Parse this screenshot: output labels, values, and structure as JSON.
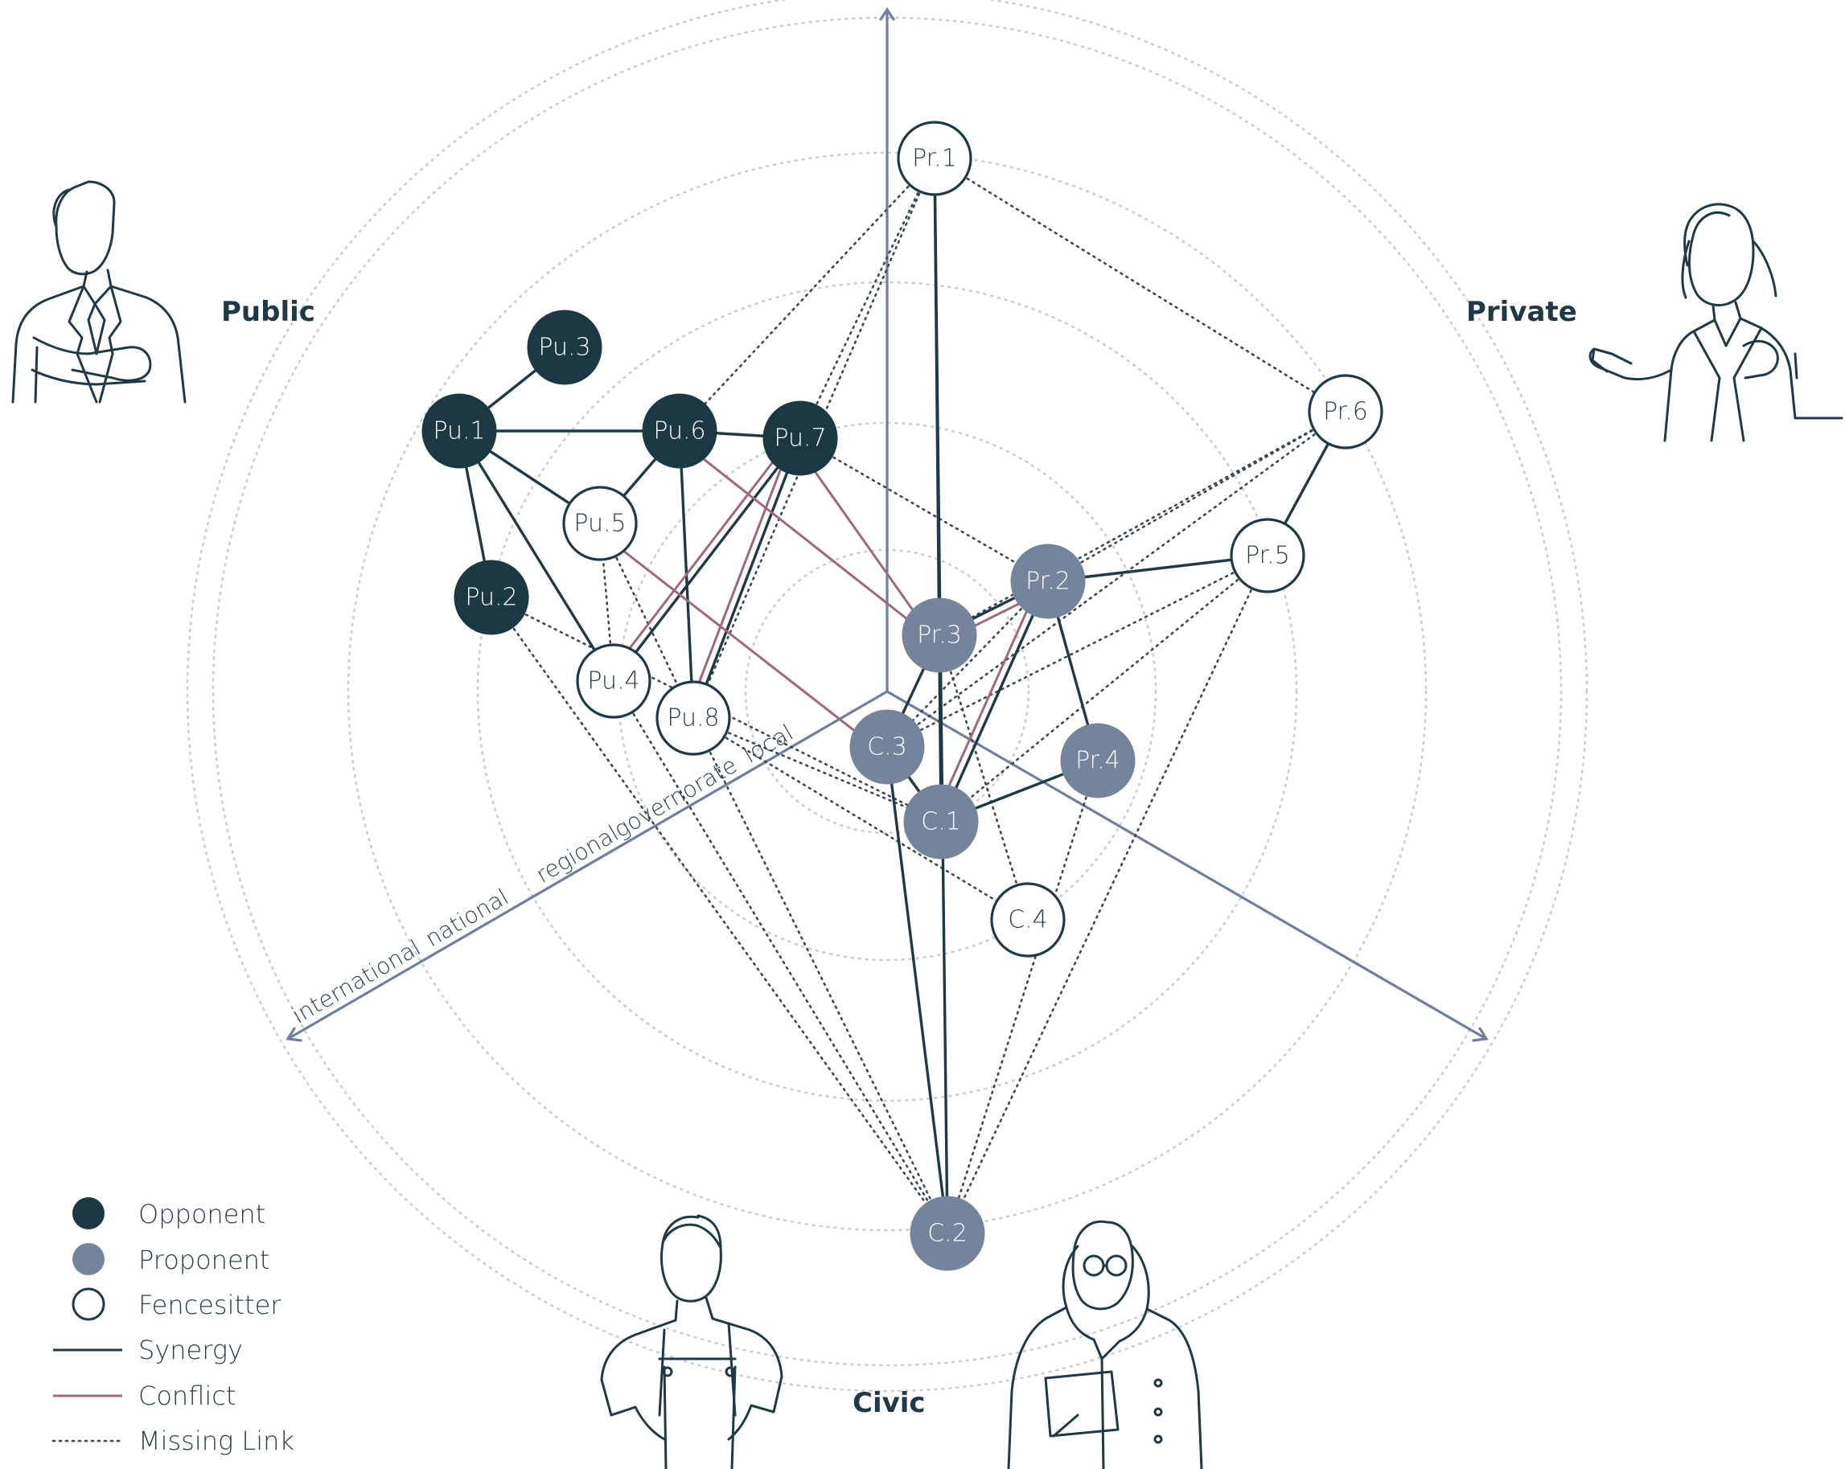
{
  "sectors": {
    "public": "Public",
    "private": "Private",
    "civic": "Civic"
  },
  "scale_labels": [
    "local",
    "governorate",
    "regional",
    "national",
    "international"
  ],
  "colors": {
    "opponent": "#1b3843",
    "proponent": "#74849c",
    "fencesitter": "#ffffff",
    "synergy": "#1f3a46",
    "conflict": "#9c6a78",
    "axis": "#6f7f9c",
    "ring": "#c9cdd6"
  },
  "nodes": [
    {
      "id": "Pr.1",
      "label": "Pr.1",
      "group": "private",
      "stance": "fencesitter"
    },
    {
      "id": "Pr.2",
      "label": "Pr.2",
      "group": "private",
      "stance": "proponent"
    },
    {
      "id": "Pr.3",
      "label": "Pr.3",
      "group": "private",
      "stance": "proponent"
    },
    {
      "id": "Pr.4",
      "label": "Pr.4",
      "group": "private",
      "stance": "proponent"
    },
    {
      "id": "Pr.5",
      "label": "Pr.5",
      "group": "private",
      "stance": "fencesitter"
    },
    {
      "id": "Pr.6",
      "label": "Pr.6",
      "group": "private",
      "stance": "fencesitter"
    },
    {
      "id": "Pu.1",
      "label": "Pu.1",
      "group": "public",
      "stance": "opponent"
    },
    {
      "id": "Pu.2",
      "label": "Pu.2",
      "group": "public",
      "stance": "opponent"
    },
    {
      "id": "Pu.3",
      "label": "Pu.3",
      "group": "public",
      "stance": "opponent"
    },
    {
      "id": "Pu.4",
      "label": "Pu.4",
      "group": "public",
      "stance": "fencesitter"
    },
    {
      "id": "Pu.5",
      "label": "Pu.5",
      "group": "public",
      "stance": "fencesitter"
    },
    {
      "id": "Pu.6",
      "label": "Pu.6",
      "group": "public",
      "stance": "opponent"
    },
    {
      "id": "Pu.7",
      "label": "Pu.7",
      "group": "public",
      "stance": "opponent"
    },
    {
      "id": "Pu.8",
      "label": "Pu.8",
      "group": "public",
      "stance": "fencesitter"
    },
    {
      "id": "C.1",
      "label": "C.1",
      "group": "civic",
      "stance": "proponent"
    },
    {
      "id": "C.2",
      "label": "C.2",
      "group": "civic",
      "stance": "proponent"
    },
    {
      "id": "C.3",
      "label": "C.3",
      "group": "civic",
      "stance": "proponent"
    },
    {
      "id": "C.4",
      "label": "C.4",
      "group": "civic",
      "stance": "fencesitter"
    }
  ],
  "edges": [
    {
      "from": "Pu.1",
      "to": "Pu.3",
      "type": "synergy"
    },
    {
      "from": "Pu.1",
      "to": "Pu.6",
      "type": "synergy"
    },
    {
      "from": "Pu.1",
      "to": "Pu.2",
      "type": "synergy"
    },
    {
      "from": "Pu.1",
      "to": "Pu.5",
      "type": "synergy"
    },
    {
      "from": "Pu.1",
      "to": "Pu.4",
      "type": "synergy"
    },
    {
      "from": "Pu.6",
      "to": "Pu.7",
      "type": "synergy"
    },
    {
      "from": "Pu.6",
      "to": "Pu.5",
      "type": "synergy"
    },
    {
      "from": "Pu.6",
      "to": "Pu.8",
      "type": "synergy"
    },
    {
      "from": "Pu.7",
      "to": "Pu.4",
      "type": "synergy"
    },
    {
      "from": "Pu.7",
      "to": "Pu.8",
      "type": "synergy"
    },
    {
      "from": "Pr.1",
      "to": "C.1",
      "type": "synergy"
    },
    {
      "from": "Pr.1",
      "to": "C.2",
      "type": "synergy"
    },
    {
      "from": "Pr.6",
      "to": "Pr.5",
      "type": "synergy"
    },
    {
      "from": "Pr.5",
      "to": "Pr.2",
      "type": "synergy"
    },
    {
      "from": "Pr.2",
      "to": "Pr.3",
      "type": "synergy"
    },
    {
      "from": "Pr.2",
      "to": "Pr.4",
      "type": "synergy"
    },
    {
      "from": "Pr.2",
      "to": "C.1",
      "type": "synergy"
    },
    {
      "from": "Pr.3",
      "to": "C.3",
      "type": "synergy"
    },
    {
      "from": "Pr.4",
      "to": "C.1",
      "type": "synergy"
    },
    {
      "from": "C.3",
      "to": "C.1",
      "type": "synergy"
    },
    {
      "from": "C.3",
      "to": "C.2",
      "type": "synergy"
    },
    {
      "from": "Pu.7",
      "to": "Pu.4",
      "type": "conflict"
    },
    {
      "from": "Pu.7",
      "to": "Pu.8",
      "type": "conflict"
    },
    {
      "from": "Pu.6",
      "to": "Pr.3",
      "type": "conflict"
    },
    {
      "from": "Pu.7",
      "to": "Pr.3",
      "type": "conflict"
    },
    {
      "from": "Pu.5",
      "to": "C.3",
      "type": "conflict"
    },
    {
      "from": "Pr.2",
      "to": "C.1",
      "type": "conflict"
    },
    {
      "from": "Pr.3",
      "to": "Pr.2",
      "type": "conflict"
    },
    {
      "from": "Pr.1",
      "to": "Pu.6",
      "type": "missing"
    },
    {
      "from": "Pr.1",
      "to": "Pu.7",
      "type": "missing"
    },
    {
      "from": "Pr.1",
      "to": "Pr.6",
      "type": "missing"
    },
    {
      "from": "Pr.1",
      "to": "Pu.8",
      "type": "missing"
    },
    {
      "from": "Pu.7",
      "to": "Pr.2",
      "type": "missing"
    },
    {
      "from": "Pr.6",
      "to": "Pr.3",
      "type": "missing"
    },
    {
      "from": "Pr.6",
      "to": "C.3",
      "type": "missing"
    },
    {
      "from": "Pr.6",
      "to": "Pr.2",
      "type": "missing"
    },
    {
      "from": "Pr.5",
      "to": "C.3",
      "type": "missing"
    },
    {
      "from": "Pr.5",
      "to": "C.1",
      "type": "missing"
    },
    {
      "from": "Pr.5",
      "to": "C.2",
      "type": "missing"
    },
    {
      "from": "Pu.2",
      "to": "C.2",
      "type": "missing"
    },
    {
      "from": "Pu.2",
      "to": "C.1",
      "type": "missing"
    },
    {
      "from": "Pu.4",
      "to": "C.2",
      "type": "missing"
    },
    {
      "from": "Pu.4",
      "to": "Pu.5",
      "type": "missing"
    },
    {
      "from": "Pu.5",
      "to": "Pu.8",
      "type": "missing"
    },
    {
      "from": "Pu.8",
      "to": "C.2",
      "type": "missing"
    },
    {
      "from": "Pu.8",
      "to": "C.4",
      "type": "missing"
    },
    {
      "from": "Pu.8",
      "to": "C.1",
      "type": "missing"
    },
    {
      "from": "Pr.3",
      "to": "C.4",
      "type": "missing"
    },
    {
      "from": "Pr.4",
      "to": "C.2",
      "type": "missing"
    },
    {
      "from": "Pr.2",
      "to": "C.3",
      "type": "missing"
    }
  ],
  "legend": [
    {
      "key": "opponent",
      "label": "Opponent",
      "symbol": "filled-dark-circle"
    },
    {
      "key": "proponent",
      "label": "Proponent",
      "symbol": "filled-grey-circle"
    },
    {
      "key": "fencesitter",
      "label": "Fencesitter",
      "symbol": "outline-circle"
    },
    {
      "key": "synergy",
      "label": "Synergy",
      "symbol": "solid-dark-line"
    },
    {
      "key": "conflict",
      "label": "Conflict",
      "symbol": "solid-red-line"
    },
    {
      "key": "missing",
      "label": "Missing Link",
      "symbol": "dotted-line"
    }
  ],
  "illustrations": [
    "public-official-icon",
    "private-businesswoman-icon",
    "civic-worker-icon",
    "civic-woman-icon"
  ]
}
